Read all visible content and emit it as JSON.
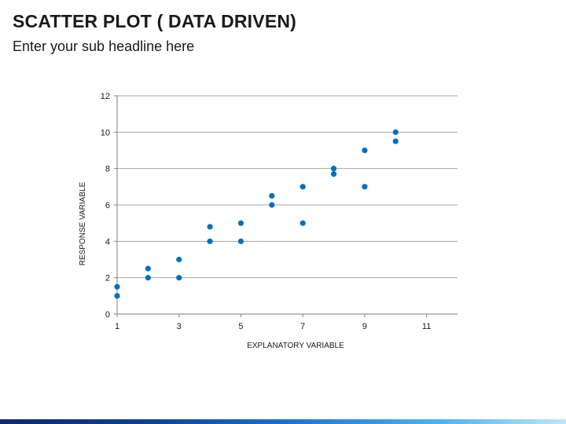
{
  "slide": {
    "title": "SCATTER PLOT ( DATA DRIVEN)",
    "subtitle": "Enter your sub headline here"
  },
  "colors": {
    "point": "#0070c0",
    "grid": "#a6a6a6",
    "axis": "#7f7f7f",
    "text": "#1a1a1a"
  },
  "chart_data": {
    "type": "scatter",
    "title": "",
    "xlabel": "EXPLANATORY VARIABLE",
    "ylabel": "RESPONSE VARIABLE",
    "xlim": [
      1,
      12
    ],
    "ylim": [
      0,
      12
    ],
    "x_ticks": [
      1,
      3,
      5,
      7,
      9,
      11
    ],
    "y_ticks": [
      0,
      2,
      4,
      6,
      8,
      10,
      12
    ],
    "grid": "horizontal",
    "legend": "none",
    "points": [
      {
        "x": 1,
        "y": 1
      },
      {
        "x": 1,
        "y": 1.5
      },
      {
        "x": 2,
        "y": 2
      },
      {
        "x": 2,
        "y": 2.5
      },
      {
        "x": 3,
        "y": 2
      },
      {
        "x": 3,
        "y": 3
      },
      {
        "x": 4,
        "y": 4
      },
      {
        "x": 4,
        "y": 4.8
      },
      {
        "x": 5,
        "y": 4
      },
      {
        "x": 5,
        "y": 5
      },
      {
        "x": 6,
        "y": 6
      },
      {
        "x": 6,
        "y": 6.5
      },
      {
        "x": 7,
        "y": 5
      },
      {
        "x": 7,
        "y": 7
      },
      {
        "x": 8,
        "y": 7.7
      },
      {
        "x": 8,
        "y": 8
      },
      {
        "x": 9,
        "y": 7
      },
      {
        "x": 9,
        "y": 9
      },
      {
        "x": 10,
        "y": 9.5
      },
      {
        "x": 10,
        "y": 10
      }
    ]
  }
}
